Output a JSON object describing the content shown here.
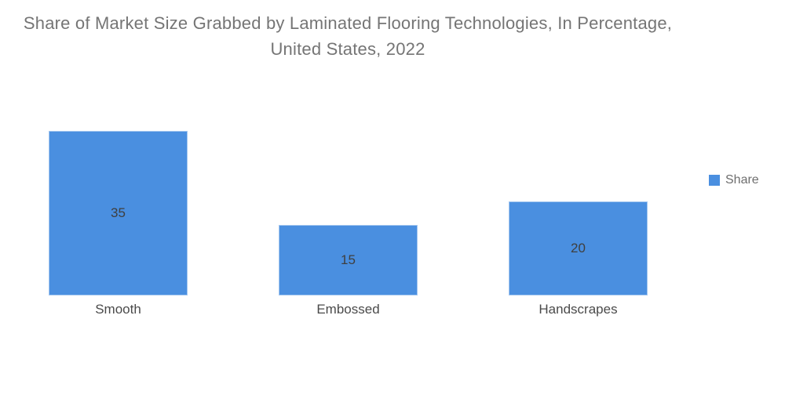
{
  "title": {
    "line1": "Share of Market Size Grabbed by Laminated Flooring Technologies, In Percentage,",
    "line2": "United States, 2022"
  },
  "legend": {
    "label": "Share"
  },
  "chart_data": {
    "type": "bar",
    "title": "Share of Market Size Grabbed by Laminated Flooring Technologies, In Percentage, United States, 2022",
    "categories": [
      "Smooth",
      "Embossed",
      "Handscrapes"
    ],
    "series": [
      {
        "name": "Share",
        "values": [
          35,
          15,
          20
        ]
      }
    ],
    "unit": "percent",
    "xlabel": "",
    "ylabel": "",
    "axes_visible": false,
    "grid": false,
    "value_labels_inside_bars": true,
    "legend_position": "right-middle"
  },
  "colors": {
    "background": "#ffffff",
    "bar": "#4A8FE0",
    "bar_border": "#a5c7ef",
    "title_text": "#757575",
    "value_text": "#3f3f3f",
    "category_text": "#4a4a4a",
    "legend_text": "#6e6e6e"
  }
}
